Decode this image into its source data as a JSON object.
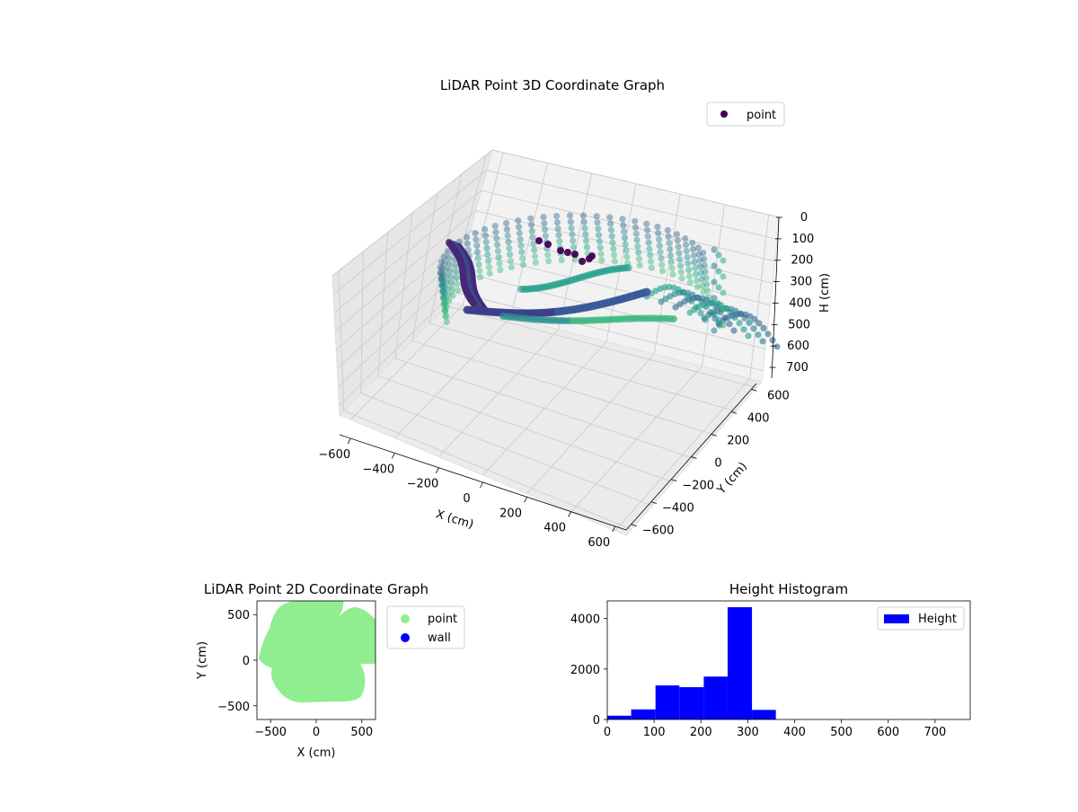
{
  "colors": {
    "viridis_dark": "#440154",
    "viridis_blue": "#3b528b",
    "viridis_teal": "#21918c",
    "viridis_green": "#5ec962",
    "point_2d": "#90ee90",
    "wall_2d": "#0000ff",
    "hist_bar": "#0000ff",
    "pane_back": "#f2f2f2",
    "pane_side": "#e6e6e6",
    "pane_floor": "#ebebeb",
    "grid": "#cccccc"
  },
  "chart_data": [
    {
      "type": "scatter",
      "projection": "3d",
      "title": "LiDAR Point 3D Coordinate Graph",
      "xlabel": "X (cm)",
      "ylabel": "Y (cm)",
      "zlabel": "H (cm)",
      "xlim": [
        -650,
        650
      ],
      "ylim": [
        -650,
        650
      ],
      "zlim": [
        750,
        0
      ],
      "xticks": [
        "−600",
        "−400",
        "−200",
        "0",
        "200",
        "400",
        "600"
      ],
      "yticks": [
        "−600",
        "−400",
        "−200",
        "0",
        "200",
        "400",
        "600"
      ],
      "zticks": [
        "0",
        "100",
        "200",
        "300",
        "400",
        "500",
        "600",
        "700"
      ],
      "colormap": "viridis",
      "grid": true,
      "legend": {
        "position": "top-right",
        "entries": [
          "point"
        ]
      }
    },
    {
      "type": "scatter",
      "title": "LiDAR Point 2D Coordinate Graph",
      "xlabel": "X (cm)",
      "ylabel": "Y (cm)",
      "xlim": [
        -650,
        650
      ],
      "ylim": [
        -650,
        650
      ],
      "xticks": [
        "−500",
        "0",
        "500"
      ],
      "yticks": [
        "−500",
        "0",
        "500"
      ],
      "series": [
        {
          "name": "point",
          "color": "#90ee90"
        },
        {
          "name": "wall",
          "color": "#0000ff"
        }
      ],
      "legend": {
        "position": "outside-right",
        "entries": [
          "point",
          "wall"
        ]
      }
    },
    {
      "type": "bar",
      "subtype": "histogram",
      "title": "Height Histogram",
      "xlim": [
        0,
        775
      ],
      "ylim": [
        0,
        4700
      ],
      "xticks": [
        "0",
        "100",
        "200",
        "300",
        "400",
        "500",
        "600",
        "700"
      ],
      "yticks": [
        "0",
        "2000",
        "4000"
      ],
      "bin_edges": [
        0,
        51,
        103,
        154,
        206,
        257,
        309,
        360
      ],
      "values": [
        150,
        400,
        1350,
        1280,
        1700,
        4450,
        380
      ],
      "series": [
        {
          "name": "Height",
          "color": "#0000ff"
        }
      ],
      "legend": {
        "position": "top-right",
        "entries": [
          "Height"
        ]
      }
    }
  ]
}
